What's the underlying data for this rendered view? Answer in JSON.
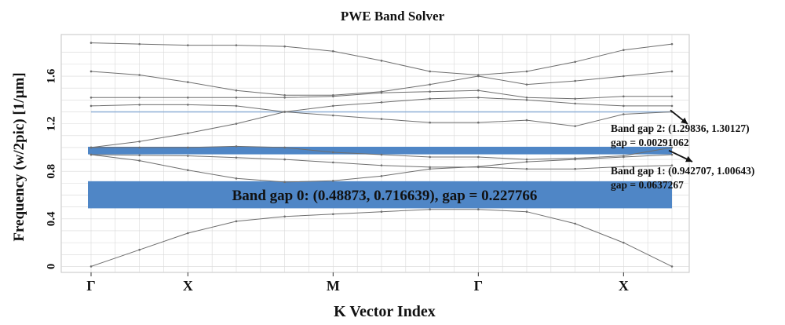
{
  "chart_data": {
    "type": "line",
    "title": "PWE Band Solver",
    "xlabel": "K Vector Index",
    "ylabel": "Frequency (w/2pic) [1/µm]",
    "xlim": [
      0,
      18
    ],
    "ylim": [
      -0.05,
      1.95
    ],
    "grid": true,
    "x_ticks": [
      {
        "x": 0,
        "label": "Γ"
      },
      {
        "x": 3,
        "label": "X"
      },
      {
        "x": 7.5,
        "label": "M"
      },
      {
        "x": 12,
        "label": "Γ"
      },
      {
        "x": 16.5,
        "label": "X"
      }
    ],
    "y_ticks": [
      0,
      0.4,
      0.8,
      1.2,
      1.6
    ],
    "y_tick_labels": [
      "0",
      "0.4",
      "0.8",
      "1.2",
      "1.6"
    ],
    "x": [
      0,
      1.5,
      3,
      4.5,
      6,
      7.5,
      9,
      10.5,
      12,
      13.5,
      15,
      16.5,
      18
    ],
    "series": [
      {
        "values": [
          0.0,
          0.14,
          0.28,
          0.38,
          0.42,
          0.44,
          0.46,
          0.48,
          0.48,
          0.46,
          0.36,
          0.2,
          0.0
        ]
      },
      {
        "values": [
          0.94,
          0.89,
          0.81,
          0.74,
          0.71,
          0.72,
          0.76,
          0.82,
          0.84,
          0.88,
          0.9,
          0.92,
          0.94
        ]
      },
      {
        "values": [
          0.94,
          0.935,
          0.93,
          0.915,
          0.9,
          0.875,
          0.85,
          0.835,
          0.835,
          0.82,
          0.82,
          0.84,
          0.85
        ]
      },
      {
        "values": [
          1.0,
          1.05,
          1.12,
          1.2,
          1.3,
          1.35,
          1.38,
          1.41,
          1.42,
          1.4,
          1.37,
          1.35,
          1.35
        ]
      },
      {
        "values": [
          1.0,
          1.0,
          1.0,
          1.01,
          1.0,
          0.96,
          0.94,
          0.92,
          0.92,
          0.9,
          0.91,
          0.93,
          1.0
        ]
      },
      {
        "values": [
          1.35,
          1.36,
          1.36,
          1.35,
          1.3,
          1.27,
          1.24,
          1.21,
          1.21,
          1.23,
          1.18,
          1.28,
          1.3
        ]
      },
      {
        "values": [
          1.42,
          1.42,
          1.42,
          1.42,
          1.42,
          1.43,
          1.46,
          1.47,
          1.48,
          1.42,
          1.41,
          1.43,
          1.43
        ]
      },
      {
        "values": [
          1.64,
          1.61,
          1.55,
          1.48,
          1.44,
          1.44,
          1.47,
          1.53,
          1.6,
          1.53,
          1.56,
          1.6,
          1.64
        ]
      },
      {
        "values": [
          1.88,
          1.87,
          1.86,
          1.86,
          1.85,
          1.81,
          1.73,
          1.64,
          1.61,
          1.64,
          1.72,
          1.82,
          1.87
        ]
      }
    ],
    "band_gaps": [
      {
        "index": 0,
        "lower": 0.48873,
        "upper": 0.716639,
        "gap": 0.227766,
        "label": "Band gap 0: (0.48873, 0.716639), gap = 0.227766",
        "color": "#4f86c6"
      },
      {
        "index": 1,
        "lower": 0.942707,
        "upper": 1.00643,
        "gap": 0.0637267,
        "label_line1": "Band gap 1: (0.942707, 1.00643)",
        "label_line2": "gap = 0.0637267",
        "color": "#4f86c6"
      },
      {
        "index": 2,
        "lower": 1.29836,
        "upper": 1.30127,
        "gap": 0.00291062,
        "label_line1": "Band gap 2: (1.29836, 1.30127)",
        "label_line2": "gap = 0.00291062",
        "color": "#4f86c6"
      }
    ],
    "colors": {
      "band_line": "#6e6e6e",
      "band_gap_fill": "#4f86c6",
      "grid": "#d8d8d8",
      "plot_border": "#c4c4c4",
      "text": "#111111"
    }
  }
}
